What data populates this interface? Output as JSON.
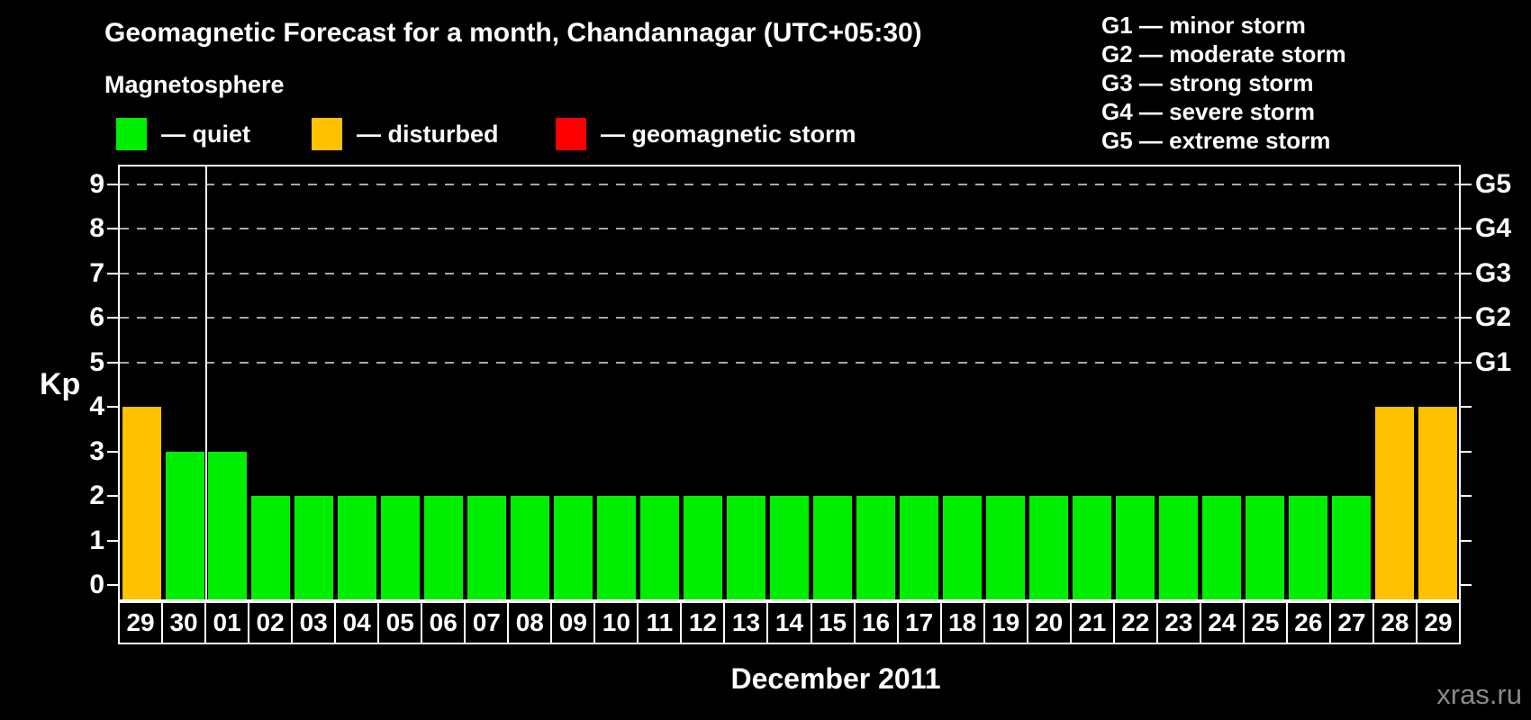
{
  "header": {
    "title": "Geomagnetic Forecast for a month, Chandannagar (UTC+05:30)"
  },
  "legend": {
    "title": "Magnetosphere",
    "items": [
      {
        "key": "quiet",
        "label": "— quiet",
        "color": "#00ee00"
      },
      {
        "key": "disturbed",
        "label": "— disturbed",
        "color": "#ffc100"
      },
      {
        "key": "storm",
        "label": "— geomagnetic storm",
        "color": "#ff0000"
      }
    ]
  },
  "storm_scale_legend": [
    "G1 — minor storm",
    "G2 — moderate storm",
    "G3 — strong storm",
    "G4 — severe storm",
    "G5 — extreme storm"
  ],
  "chart_data": {
    "type": "bar",
    "title": "Geomagnetic Forecast for a month, Chandannagar (UTC+05:30)",
    "xlabel": "December 2011",
    "ylabel": "Kp",
    "ylim": [
      0,
      9
    ],
    "yticks": [
      0,
      1,
      2,
      3,
      4,
      5,
      6,
      7,
      8,
      9
    ],
    "gridlines_at": [
      5,
      6,
      7,
      8,
      9
    ],
    "grid": true,
    "legend_position": "top",
    "right_axis_labels": [
      {
        "kp": 5,
        "label": "G1"
      },
      {
        "kp": 6,
        "label": "G2"
      },
      {
        "kp": 7,
        "label": "G3"
      },
      {
        "kp": 8,
        "label": "G4"
      },
      {
        "kp": 9,
        "label": "G5"
      }
    ],
    "categories": [
      "29",
      "30",
      "01",
      "02",
      "03",
      "04",
      "05",
      "06",
      "07",
      "08",
      "09",
      "10",
      "11",
      "12",
      "13",
      "14",
      "15",
      "16",
      "17",
      "18",
      "19",
      "20",
      "21",
      "22",
      "23",
      "24",
      "25",
      "26",
      "27",
      "28",
      "29"
    ],
    "values": [
      4,
      3,
      3,
      2,
      2,
      2,
      2,
      2,
      2,
      2,
      2,
      2,
      2,
      2,
      2,
      2,
      2,
      2,
      2,
      2,
      2,
      2,
      2,
      2,
      2,
      2,
      2,
      2,
      2,
      4,
      4
    ],
    "statuses": [
      "disturbed",
      "quiet",
      "quiet",
      "quiet",
      "quiet",
      "quiet",
      "quiet",
      "quiet",
      "quiet",
      "quiet",
      "quiet",
      "quiet",
      "quiet",
      "quiet",
      "quiet",
      "quiet",
      "quiet",
      "quiet",
      "quiet",
      "quiet",
      "quiet",
      "quiet",
      "quiet",
      "quiet",
      "quiet",
      "quiet",
      "quiet",
      "quiet",
      "quiet",
      "disturbed",
      "disturbed"
    ],
    "month_divider_after_index": 1
  },
  "footer": {
    "xlabel": "December 2011",
    "watermark": "xras.ru"
  }
}
